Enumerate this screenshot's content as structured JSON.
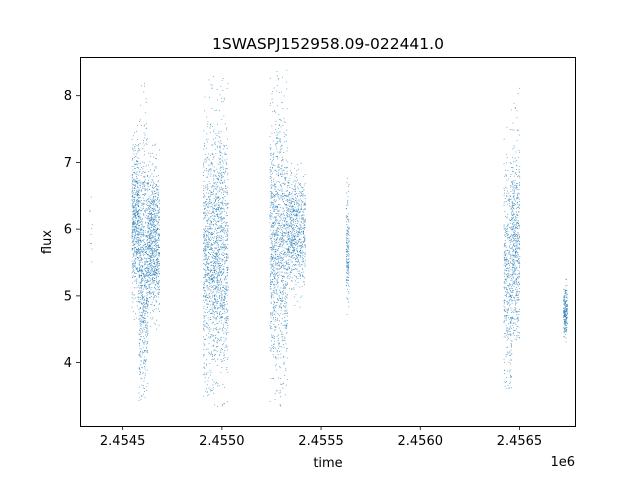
{
  "chart_data": {
    "type": "scatter",
    "title": "1SWASPJ152958.09-022441.0",
    "xlabel": "time",
    "ylabel": "flux",
    "x_offset_label": "1e6",
    "xlim": [
      2454285,
      2456780
    ],
    "ylim": [
      3.05,
      8.58
    ],
    "x_ticks": [
      2454500,
      2455000,
      2455500,
      2456000,
      2456500
    ],
    "x_tick_labels": [
      "2.4545",
      "2.4550",
      "2.4555",
      "2.4560",
      "2.4565"
    ],
    "y_ticks": [
      4,
      5,
      6,
      7,
      8
    ],
    "y_tick_labels": [
      "4",
      "5",
      "6",
      "7",
      "8"
    ],
    "grid": false,
    "marker_color": "#1f77b4",
    "clusters": [
      {
        "x_start": 2454330,
        "x_end": 2454345,
        "y_min": 4.7,
        "y_max": 6.6,
        "center": 5.9,
        "count": 10
      },
      {
        "x_start": 2454545,
        "x_end": 2454580,
        "y_min": 4.6,
        "y_max": 7.6,
        "center": 6.1,
        "count": 520
      },
      {
        "x_start": 2454580,
        "x_end": 2454625,
        "y_min": 3.4,
        "y_max": 8.4,
        "center": 5.5,
        "count": 700
      },
      {
        "x_start": 2454625,
        "x_end": 2454685,
        "y_min": 4.5,
        "y_max": 7.3,
        "center": 5.8,
        "count": 780
      },
      {
        "x_start": 2454905,
        "x_end": 2454960,
        "y_min": 3.5,
        "y_max": 8.3,
        "center": 5.6,
        "count": 720
      },
      {
        "x_start": 2454960,
        "x_end": 2455030,
        "y_min": 3.3,
        "y_max": 8.3,
        "center": 5.7,
        "count": 900
      },
      {
        "x_start": 2455240,
        "x_end": 2455330,
        "y_min": 3.3,
        "y_max": 8.4,
        "center": 5.8,
        "count": 1100
      },
      {
        "x_start": 2455330,
        "x_end": 2455420,
        "y_min": 4.8,
        "y_max": 7.0,
        "center": 6.0,
        "count": 700
      },
      {
        "x_start": 2455625,
        "x_end": 2455640,
        "y_min": 4.6,
        "y_max": 6.8,
        "center": 5.7,
        "count": 160
      },
      {
        "x_start": 2456420,
        "x_end": 2456460,
        "y_min": 3.6,
        "y_max": 7.8,
        "center": 5.3,
        "count": 420
      },
      {
        "x_start": 2456460,
        "x_end": 2456500,
        "y_min": 4.3,
        "y_max": 8.4,
        "center": 5.8,
        "count": 500
      },
      {
        "x_start": 2456720,
        "x_end": 2456740,
        "y_min": 4.3,
        "y_max": 5.3,
        "center": 4.8,
        "count": 200
      }
    ]
  }
}
